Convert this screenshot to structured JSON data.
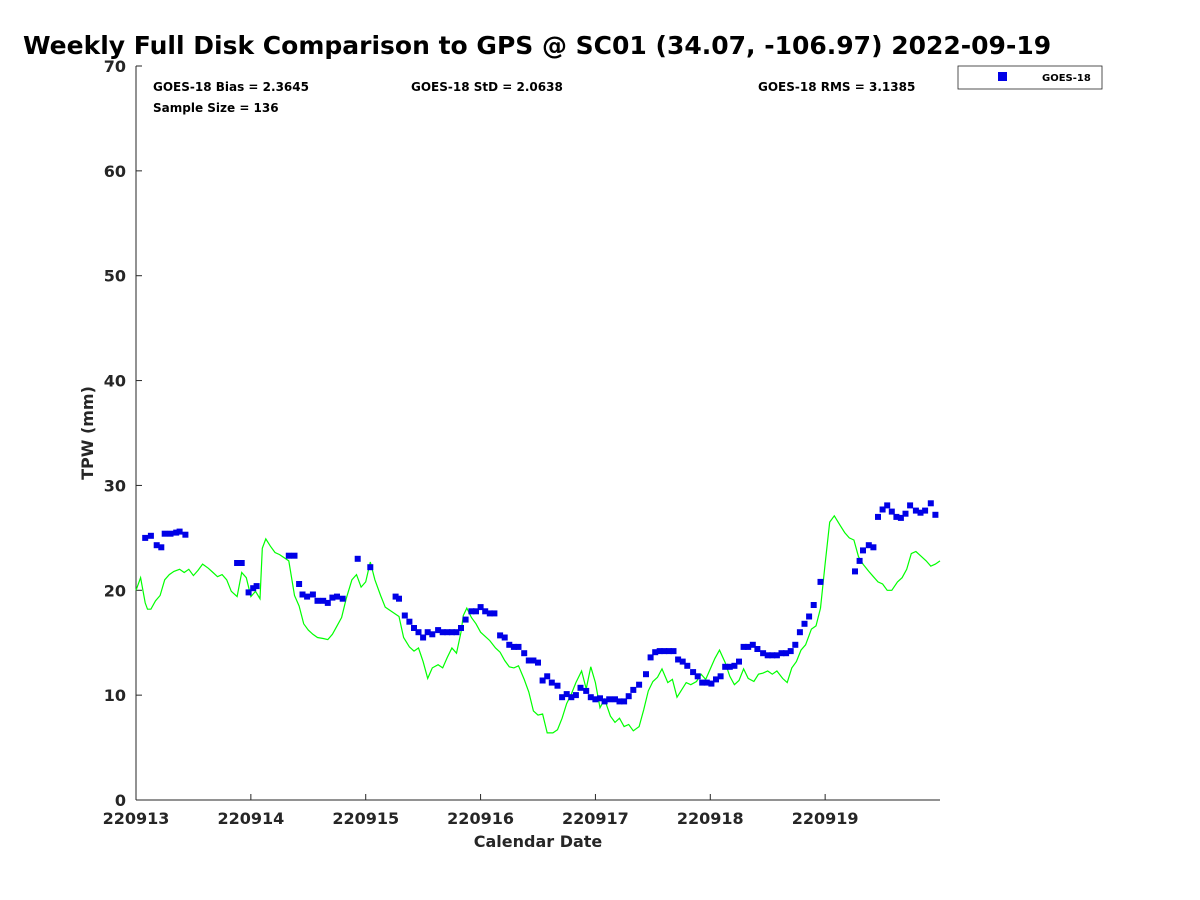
{
  "chart_data": {
    "type": "scatter",
    "title": "Weekly Full Disk Comparison to GPS @ SC01 (34.07, -106.97) 2022-09-19",
    "xlabel": "Calendar Date",
    "ylabel": "TPW (mm)",
    "xlim": [
      "220913",
      "220920"
    ],
    "ylim": [
      0,
      70
    ],
    "y_ticks": [
      "0",
      "10",
      "20",
      "30",
      "40",
      "50",
      "60",
      "70"
    ],
    "x_ticks": [
      "220913",
      "220914",
      "220915",
      "220916",
      "220917",
      "220918",
      "220919"
    ],
    "grid": false,
    "legend_position": "outside-top-right",
    "stats": {
      "bias": "GOES-18 Bias = 2.3645",
      "std": "GOES-18 StD = 2.0638",
      "rms": "GOES-18 RMS = 3.1385",
      "sample_size": "Sample Size = 136"
    },
    "series": [
      {
        "name": "GOES-18",
        "style": "square markers",
        "color": "#0000e6",
        "points": [
          [
            0.08,
            25.0
          ],
          [
            0.13,
            25.2
          ],
          [
            0.18,
            24.3
          ],
          [
            0.22,
            24.1
          ],
          [
            0.25,
            25.4
          ],
          [
            0.3,
            25.4
          ],
          [
            0.35,
            25.5
          ],
          [
            0.38,
            25.6
          ],
          [
            0.43,
            25.3
          ],
          [
            0.88,
            22.6
          ],
          [
            0.92,
            22.6
          ],
          [
            0.98,
            19.8
          ],
          [
            1.02,
            20.2
          ],
          [
            1.05,
            20.4
          ],
          [
            1.33,
            23.3
          ],
          [
            1.38,
            23.3
          ],
          [
            1.42,
            20.6
          ],
          [
            1.45,
            19.6
          ],
          [
            1.49,
            19.4
          ],
          [
            1.54,
            19.6
          ],
          [
            1.58,
            19.0
          ],
          [
            1.63,
            19.0
          ],
          [
            1.67,
            18.8
          ],
          [
            1.71,
            19.3
          ],
          [
            1.75,
            19.4
          ],
          [
            1.8,
            19.2
          ],
          [
            1.93,
            23.0
          ],
          [
            2.04,
            22.2
          ],
          [
            2.26,
            19.4
          ],
          [
            2.29,
            19.2
          ],
          [
            2.34,
            17.6
          ],
          [
            2.38,
            17.0
          ],
          [
            2.42,
            16.4
          ],
          [
            2.46,
            16.0
          ],
          [
            2.5,
            15.5
          ],
          [
            2.54,
            16.0
          ],
          [
            2.58,
            15.8
          ],
          [
            2.63,
            16.2
          ],
          [
            2.67,
            16.0
          ],
          [
            2.71,
            16.0
          ],
          [
            2.75,
            16.0
          ],
          [
            2.79,
            16.0
          ],
          [
            2.83,
            16.4
          ],
          [
            2.87,
            17.2
          ],
          [
            2.92,
            18.0
          ],
          [
            2.96,
            18.0
          ],
          [
            3.0,
            18.4
          ],
          [
            3.04,
            18.0
          ],
          [
            3.08,
            17.8
          ],
          [
            3.12,
            17.8
          ],
          [
            3.17,
            15.7
          ],
          [
            3.21,
            15.5
          ],
          [
            3.25,
            14.8
          ],
          [
            3.29,
            14.6
          ],
          [
            3.33,
            14.6
          ],
          [
            3.38,
            14.0
          ],
          [
            3.42,
            13.3
          ],
          [
            3.46,
            13.3
          ],
          [
            3.5,
            13.1
          ],
          [
            3.54,
            11.4
          ],
          [
            3.58,
            11.8
          ],
          [
            3.62,
            11.2
          ],
          [
            3.67,
            10.9
          ],
          [
            3.71,
            9.8
          ],
          [
            3.75,
            10.1
          ],
          [
            3.79,
            9.8
          ],
          [
            3.83,
            10.0
          ],
          [
            3.87,
            10.7
          ],
          [
            3.92,
            10.4
          ],
          [
            3.96,
            9.8
          ],
          [
            4.0,
            9.6
          ],
          [
            4.04,
            9.7
          ],
          [
            4.08,
            9.4
          ],
          [
            4.12,
            9.6
          ],
          [
            4.17,
            9.6
          ],
          [
            4.21,
            9.4
          ],
          [
            4.25,
            9.4
          ],
          [
            4.29,
            9.9
          ],
          [
            4.33,
            10.5
          ],
          [
            4.38,
            11.0
          ],
          [
            4.44,
            12.0
          ],
          [
            4.48,
            13.6
          ],
          [
            4.52,
            14.1
          ],
          [
            4.56,
            14.2
          ],
          [
            4.6,
            14.2
          ],
          [
            4.64,
            14.2
          ],
          [
            4.68,
            14.2
          ],
          [
            4.72,
            13.4
          ],
          [
            4.76,
            13.2
          ],
          [
            4.8,
            12.8
          ],
          [
            4.85,
            12.2
          ],
          [
            4.89,
            11.8
          ],
          [
            4.93,
            11.2
          ],
          [
            4.97,
            11.2
          ],
          [
            5.01,
            11.1
          ],
          [
            5.05,
            11.5
          ],
          [
            5.09,
            11.8
          ],
          [
            5.13,
            12.7
          ],
          [
            5.17,
            12.7
          ],
          [
            5.21,
            12.8
          ],
          [
            5.25,
            13.2
          ],
          [
            5.29,
            14.6
          ],
          [
            5.33,
            14.6
          ],
          [
            5.37,
            14.8
          ],
          [
            5.41,
            14.4
          ],
          [
            5.46,
            14.0
          ],
          [
            5.5,
            13.8
          ],
          [
            5.54,
            13.8
          ],
          [
            5.58,
            13.8
          ],
          [
            5.62,
            14.0
          ],
          [
            5.66,
            14.0
          ],
          [
            5.7,
            14.2
          ],
          [
            5.74,
            14.8
          ],
          [
            5.78,
            16.0
          ],
          [
            5.82,
            16.8
          ],
          [
            5.86,
            17.5
          ],
          [
            5.9,
            18.6
          ],
          [
            5.96,
            20.8
          ],
          [
            6.26,
            21.8
          ],
          [
            6.3,
            22.8
          ],
          [
            6.33,
            23.8
          ],
          [
            6.38,
            24.3
          ],
          [
            6.42,
            24.1
          ],
          [
            6.46,
            27.0
          ],
          [
            6.5,
            27.7
          ],
          [
            6.54,
            28.1
          ],
          [
            6.58,
            27.5
          ],
          [
            6.62,
            27.0
          ],
          [
            6.66,
            26.9
          ],
          [
            6.7,
            27.3
          ],
          [
            6.74,
            28.1
          ],
          [
            6.79,
            27.6
          ],
          [
            6.83,
            27.4
          ],
          [
            6.87,
            27.6
          ],
          [
            6.92,
            28.3
          ],
          [
            6.96,
            27.2
          ]
        ]
      },
      {
        "name": "",
        "style": "line",
        "color": "#00ff00",
        "points": [
          [
            0.0,
            20.0
          ],
          [
            0.04,
            21.2
          ],
          [
            0.08,
            18.8
          ],
          [
            0.1,
            18.2
          ],
          [
            0.13,
            18.2
          ],
          [
            0.17,
            19.0
          ],
          [
            0.21,
            19.5
          ],
          [
            0.25,
            21.0
          ],
          [
            0.29,
            21.5
          ],
          [
            0.33,
            21.8
          ],
          [
            0.38,
            22.0
          ],
          [
            0.42,
            21.7
          ],
          [
            0.46,
            22.0
          ],
          [
            0.5,
            21.4
          ],
          [
            0.54,
            21.9
          ],
          [
            0.58,
            22.5
          ],
          [
            0.63,
            22.1
          ],
          [
            0.67,
            21.7
          ],
          [
            0.71,
            21.3
          ],
          [
            0.75,
            21.5
          ],
          [
            0.79,
            21.0
          ],
          [
            0.83,
            19.9
          ],
          [
            0.88,
            19.4
          ],
          [
            0.92,
            21.7
          ],
          [
            0.96,
            21.2
          ],
          [
            1.0,
            19.4
          ],
          [
            1.04,
            19.9
          ],
          [
            1.08,
            19.2
          ],
          [
            1.1,
            24.0
          ],
          [
            1.13,
            24.9
          ],
          [
            1.17,
            24.2
          ],
          [
            1.21,
            23.6
          ],
          [
            1.25,
            23.4
          ],
          [
            1.29,
            23.1
          ],
          [
            1.33,
            22.8
          ],
          [
            1.38,
            19.5
          ],
          [
            1.42,
            18.5
          ],
          [
            1.46,
            16.8
          ],
          [
            1.5,
            16.2
          ],
          [
            1.54,
            15.8
          ],
          [
            1.58,
            15.5
          ],
          [
            1.63,
            15.4
          ],
          [
            1.67,
            15.3
          ],
          [
            1.71,
            15.8
          ],
          [
            1.75,
            16.6
          ],
          [
            1.79,
            17.4
          ],
          [
            1.83,
            19.2
          ],
          [
            1.88,
            21.0
          ],
          [
            1.92,
            21.5
          ],
          [
            1.96,
            20.3
          ],
          [
            2.0,
            20.8
          ],
          [
            2.04,
            22.7
          ],
          [
            2.08,
            21.0
          ],
          [
            2.13,
            19.5
          ],
          [
            2.17,
            18.4
          ],
          [
            2.21,
            18.1
          ],
          [
            2.25,
            17.8
          ],
          [
            2.29,
            17.5
          ],
          [
            2.33,
            15.5
          ],
          [
            2.38,
            14.6
          ],
          [
            2.42,
            14.2
          ],
          [
            2.46,
            14.5
          ],
          [
            2.5,
            13.2
          ],
          [
            2.54,
            11.6
          ],
          [
            2.58,
            12.6
          ],
          [
            2.63,
            12.9
          ],
          [
            2.67,
            12.6
          ],
          [
            2.71,
            13.6
          ],
          [
            2.75,
            14.5
          ],
          [
            2.79,
            14.0
          ],
          [
            2.83,
            16.0
          ],
          [
            2.85,
            17.6
          ],
          [
            2.88,
            18.3
          ],
          [
            2.92,
            17.4
          ],
          [
            2.96,
            16.8
          ],
          [
            3.0,
            16.0
          ],
          [
            3.04,
            15.6
          ],
          [
            3.08,
            15.2
          ],
          [
            3.13,
            14.5
          ],
          [
            3.17,
            14.1
          ],
          [
            3.21,
            13.3
          ],
          [
            3.25,
            12.7
          ],
          [
            3.29,
            12.6
          ],
          [
            3.33,
            12.8
          ],
          [
            3.38,
            11.5
          ],
          [
            3.42,
            10.3
          ],
          [
            3.46,
            8.5
          ],
          [
            3.5,
            8.1
          ],
          [
            3.54,
            8.2
          ],
          [
            3.58,
            6.4
          ],
          [
            3.63,
            6.4
          ],
          [
            3.67,
            6.7
          ],
          [
            3.71,
            7.8
          ],
          [
            3.75,
            9.2
          ],
          [
            3.79,
            10.1
          ],
          [
            3.83,
            11.2
          ],
          [
            3.88,
            12.3
          ],
          [
            3.92,
            10.6
          ],
          [
            3.96,
            12.7
          ],
          [
            4.0,
            11.2
          ],
          [
            4.04,
            8.8
          ],
          [
            4.08,
            9.6
          ],
          [
            4.13,
            8.0
          ],
          [
            4.17,
            7.4
          ],
          [
            4.21,
            7.8
          ],
          [
            4.25,
            7.0
          ],
          [
            4.29,
            7.2
          ],
          [
            4.33,
            6.6
          ],
          [
            4.38,
            7.0
          ],
          [
            4.42,
            8.6
          ],
          [
            4.46,
            10.4
          ],
          [
            4.5,
            11.3
          ],
          [
            4.54,
            11.7
          ],
          [
            4.58,
            12.5
          ],
          [
            4.63,
            11.2
          ],
          [
            4.67,
            11.5
          ],
          [
            4.71,
            9.8
          ],
          [
            4.75,
            10.5
          ],
          [
            4.79,
            11.2
          ],
          [
            4.83,
            11.0
          ],
          [
            4.88,
            11.3
          ],
          [
            4.92,
            12.0
          ],
          [
            4.96,
            11.5
          ],
          [
            5.0,
            12.5
          ],
          [
            5.04,
            13.5
          ],
          [
            5.08,
            14.3
          ],
          [
            5.13,
            13.1
          ],
          [
            5.17,
            11.8
          ],
          [
            5.21,
            11.0
          ],
          [
            5.25,
            11.4
          ],
          [
            5.29,
            12.5
          ],
          [
            5.33,
            11.6
          ],
          [
            5.38,
            11.3
          ],
          [
            5.42,
            12.0
          ],
          [
            5.46,
            12.1
          ],
          [
            5.5,
            12.3
          ],
          [
            5.54,
            12.0
          ],
          [
            5.58,
            12.3
          ],
          [
            5.63,
            11.6
          ],
          [
            5.67,
            11.2
          ],
          [
            5.71,
            12.6
          ],
          [
            5.75,
            13.2
          ],
          [
            5.79,
            14.3
          ],
          [
            5.83,
            14.8
          ],
          [
            5.88,
            16.3
          ],
          [
            5.92,
            16.6
          ],
          [
            5.96,
            18.3
          ],
          [
            6.0,
            22.5
          ],
          [
            6.04,
            26.5
          ],
          [
            6.08,
            27.1
          ],
          [
            6.13,
            26.2
          ],
          [
            6.17,
            25.5
          ],
          [
            6.21,
            25.0
          ],
          [
            6.25,
            24.8
          ],
          [
            6.29,
            23.2
          ],
          [
            6.33,
            22.5
          ],
          [
            6.38,
            21.8
          ],
          [
            6.42,
            21.3
          ],
          [
            6.46,
            20.8
          ],
          [
            6.5,
            20.6
          ],
          [
            6.54,
            20.0
          ],
          [
            6.58,
            20.0
          ],
          [
            6.63,
            20.8
          ],
          [
            6.67,
            21.2
          ],
          [
            6.71,
            22.0
          ],
          [
            6.75,
            23.5
          ],
          [
            6.79,
            23.7
          ],
          [
            6.83,
            23.3
          ],
          [
            6.88,
            22.8
          ],
          [
            6.92,
            22.3
          ],
          [
            6.96,
            22.5
          ],
          [
            7.0,
            22.8
          ]
        ]
      }
    ]
  }
}
